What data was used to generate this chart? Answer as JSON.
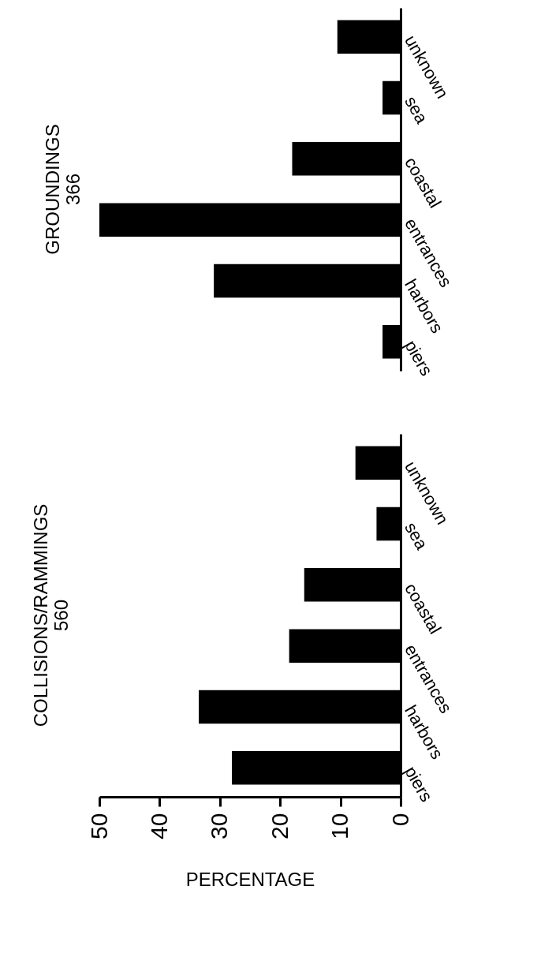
{
  "chart_data": [
    {
      "type": "bar",
      "orientation": "horizontal",
      "title": "GROUNDINGS\n366",
      "categories": [
        "unknown",
        "sea",
        "coastal",
        "entrances",
        "harbors",
        "piers"
      ],
      "values": [
        10.5,
        3,
        18,
        50,
        31,
        3
      ],
      "color": "#000000",
      "xlim": [
        50,
        0
      ],
      "xticks": [
        50,
        40,
        30,
        20,
        10,
        0
      ],
      "tick_labels": "y"
    },
    {
      "type": "bar",
      "orientation": "horizontal",
      "title": "COLLISIONS/RAMMINGS\n560",
      "xlabel": "PERCENTAGE",
      "categories": [
        "unknown",
        "sea",
        "coastal",
        "entrances",
        "harbors",
        "piers"
      ],
      "values": [
        7.5,
        4,
        16,
        18.5,
        33.5,
        28
      ],
      "color": "#000000",
      "xlim": [
        50,
        0
      ],
      "xticks": [
        50,
        40,
        30,
        20,
        10,
        0
      ]
    }
  ]
}
